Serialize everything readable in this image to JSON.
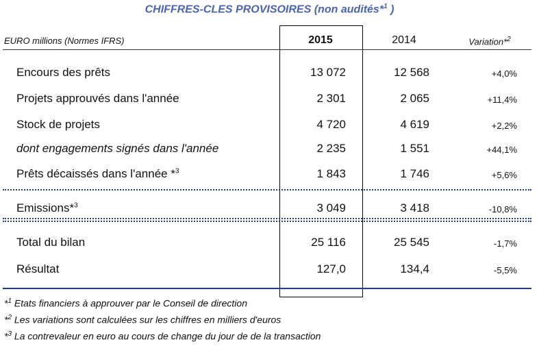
{
  "title": {
    "text": "CHIFFRES-CLES PROVISOIRES (non audités*",
    "sup": "1",
    "close": ")"
  },
  "header": {
    "label": "EURO millions (Normes IFRS)",
    "col1": "2015",
    "col2": "2014",
    "col3": "Variation*",
    "col3_sup": "2"
  },
  "groups": [
    {
      "rows": [
        {
          "label": "Encours des prêts",
          "v2015": "13 072",
          "v2014": "12 568",
          "variation": "+4,0%"
        },
        {
          "label": "Projets approuvés dans l'année",
          "v2015": "2 301",
          "v2014": "2 065",
          "variation": "+11,4%"
        },
        {
          "label": "Stock de projets",
          "v2015": "4 720",
          "v2014": "4 619",
          "variation": "+2,2%"
        },
        {
          "label": "dont engagements signés dans l'année",
          "italic": true,
          "v2015": "2 235",
          "v2014": "1 551",
          "variation": "+44,1%"
        },
        {
          "label": "Prêts décaissés dans l'année *",
          "sup": "3",
          "v2015": "1 843",
          "v2014": "1 746",
          "variation": "+5,6%"
        }
      ]
    },
    {
      "rows": [
        {
          "label": "Emissions*",
          "sup": "3",
          "v2015": "3 049",
          "v2014": "3 418",
          "variation": "-10,8%"
        }
      ]
    },
    {
      "rows": [
        {
          "label": "Total du bilan",
          "v2015": "25 116",
          "v2014": "25 545",
          "variation": "-1,7%"
        },
        {
          "label": "Résultat",
          "v2015": "127,0",
          "v2014": "134,4",
          "variation": "-5,5%"
        }
      ]
    }
  ],
  "footnotes": [
    {
      "marker": "*",
      "sup": "1",
      "text": "Etats financiers à approuver par le Conseil de direction"
    },
    {
      "marker": "*",
      "sup": "2",
      "text": "Les variations sont calculées sur les chiffres en milliers d'euros"
    },
    {
      "marker": "*",
      "sup": "3",
      "text": "La contrevaleur en euro au cours de change du jour de de la transaction"
    }
  ]
}
